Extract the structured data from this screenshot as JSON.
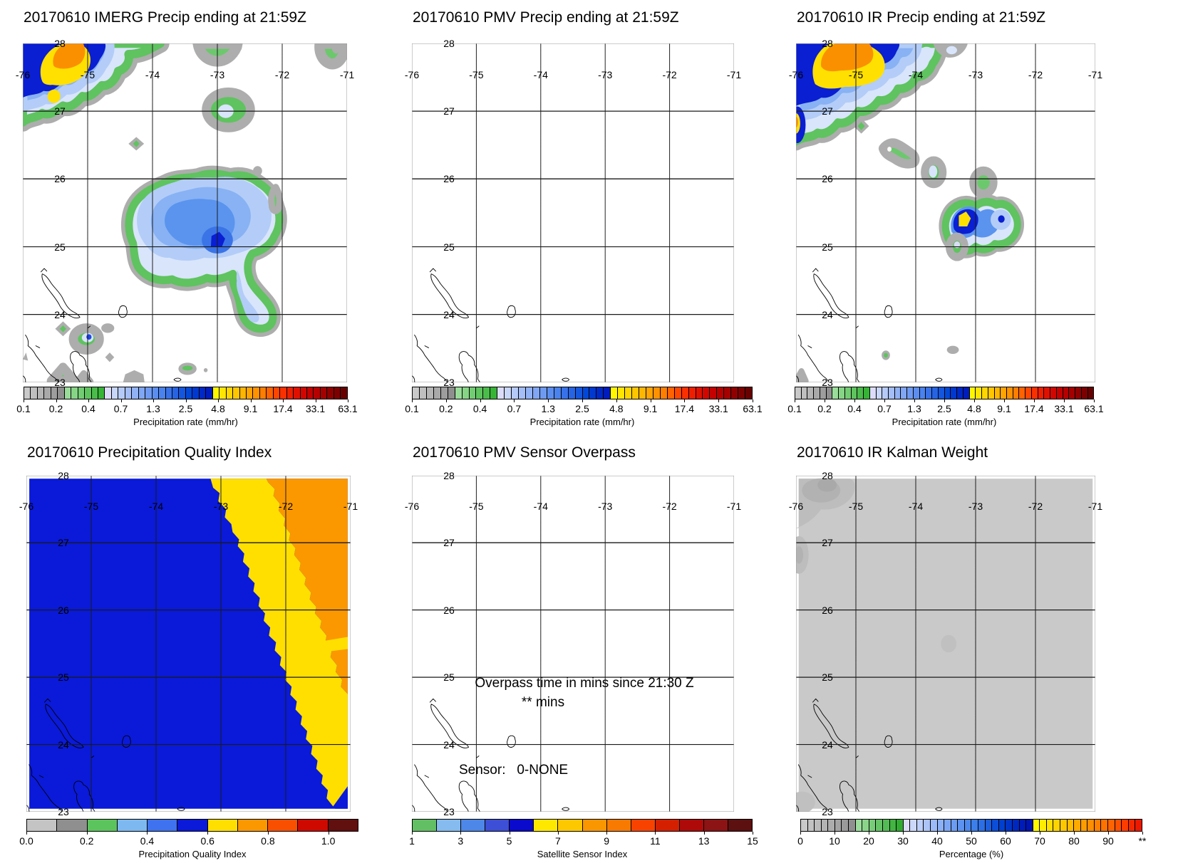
{
  "figure": {
    "background": "#ffffff"
  },
  "geo_labels": {
    "lon": [
      "-76",
      "-75",
      "-74",
      "-73",
      "-72",
      "-71"
    ],
    "lat": [
      "28",
      "27",
      "26",
      "25",
      "24",
      "23"
    ]
  },
  "panels": [
    {
      "id": "imerg-precip",
      "title": "20170610 IMERG Precip ending at 21:59Z",
      "colorbar": {
        "title": "Precipitation rate (mm/hr)",
        "colormap": "precip",
        "tick_labels": [
          "0.1",
          "0.2",
          "0.4",
          "0.7",
          "1.3",
          "2.5",
          "4.8",
          "9.1",
          "17.4",
          "33.1",
          "63.1"
        ]
      }
    },
    {
      "id": "pmv-precip",
      "title": "20170610 PMV Precip ending at 21:59Z",
      "colorbar": {
        "title": "Precipitation rate (mm/hr)",
        "colormap": "precip",
        "tick_labels": [
          "0.1",
          "0.2",
          "0.4",
          "0.7",
          "1.3",
          "2.5",
          "4.8",
          "9.1",
          "17.4",
          "33.1",
          "63.1"
        ]
      }
    },
    {
      "id": "ir-precip",
      "title": "20170610 IR Precip ending at 21:59Z",
      "colorbar": {
        "title": "Precipitation rate (mm/hr)",
        "colormap": "precip",
        "tick_labels": [
          "0.1",
          "0.2",
          "0.4",
          "0.7",
          "1.3",
          "2.5",
          "4.8",
          "9.1",
          "17.4",
          "33.1",
          "63.1"
        ]
      }
    },
    {
      "id": "precip-quality-index",
      "title": "20170610 Precipitation Quality Index",
      "colorbar": {
        "title": "Precipitation Quality Index",
        "colormap": "pqi",
        "tick_labels": [
          "0.0",
          "0.2",
          "0.4",
          "0.6",
          "0.8",
          "1.0"
        ]
      }
    },
    {
      "id": "pmv-sensor-overpass",
      "title": "20170610 PMV Sensor Overpass",
      "colorbar": {
        "title": "Satellite Sensor Index",
        "colormap": "sensor",
        "tick_labels": [
          "1",
          "3",
          "5",
          "7",
          "9",
          "11",
          "13",
          "15"
        ]
      },
      "overlay": {
        "line1": "Overpass time in mins since 21:30 Z",
        "line2": "** mins",
        "sensor_label": "Sensor:   0-NONE"
      }
    },
    {
      "id": "ir-kalman-weight",
      "title": "20170610 IR Kalman Weight",
      "colorbar": {
        "title": "Percentage (%)",
        "colormap": "percentage",
        "tick_labels": [
          "0",
          "10",
          "20",
          "30",
          "40",
          "50",
          "60",
          "70",
          "80",
          "90",
          "**"
        ]
      }
    }
  ],
  "palette": {
    "fringe": "#adadad",
    "ring": "#5fc35f",
    "greenFill": "#6cc86c",
    "pale": "#d9e5fb",
    "lblue": "#b3cdf8",
    "mblue": "#88b2f4",
    "blue": "#5a94ee",
    "dblue": "#3b74e6",
    "navy": "#0a1ed2",
    "dot": "#1e46e6",
    "yellow": "#ffe000",
    "orange": "#fa9000",
    "lavender": "#dcdcfa",
    "white": "#ffffff",
    "pqiBlue": "#0a1ad8",
    "pqiYellow": "#ffdf00",
    "pqiOrange": "#fb9800",
    "kGray": "#c9c9c9",
    "kGray2": "#bdbdbd",
    "kGray3": "#b2b2b2",
    "kGray4": "#a9a9a9",
    "kFaint": "#c0c0c0"
  },
  "colormaps": {
    "precip": [
      "#c9c9c9",
      "#bfbfbf",
      "#b5b5b5",
      "#a9a9a9",
      "#9d9d9d",
      "#8f8f8f",
      "#9adc9a",
      "#86d486",
      "#72cc72",
      "#5ec45e",
      "#4abc4a",
      "#36b436",
      "#dcdcfa",
      "#c8d6fa",
      "#b6caf8",
      "#a4bef8",
      "#92b2f6",
      "#80a6f4",
      "#6e9af2",
      "#5c8ef0",
      "#4a82ee",
      "#3872ea",
      "#2664e4",
      "#1456de",
      "#0248d8",
      "#0038d0",
      "#0028c6",
      "#001cbc",
      "#fff600",
      "#ffe600",
      "#ffd600",
      "#ffc600",
      "#ffb600",
      "#ffa400",
      "#ff9200",
      "#ff7e00",
      "#ff6200",
      "#ff4600",
      "#fa3000",
      "#ee1e00",
      "#e01000",
      "#d20600",
      "#c40000",
      "#b60000",
      "#a40000",
      "#900000",
      "#7c0000",
      "#680000"
    ],
    "pqi": [
      "#c4c4c4",
      "#8f8f8f",
      "#5cc45c",
      "#7db9f0",
      "#3f72ee",
      "#0a1ad8",
      "#ffdf00",
      "#fb9800",
      "#f85000",
      "#ce0a00",
      "#610f0f"
    ],
    "sensor": [
      "#63bf63",
      "#85bbee",
      "#4d87e8",
      "#3d4fd6",
      "#0a0acc",
      "#ffe800",
      "#fec800",
      "#fa9600",
      "#f87a00",
      "#f84300",
      "#d42000",
      "#ae0a0a",
      "#8c1414",
      "#5c1010"
    ],
    "percentage": [
      "#c9c9c9",
      "#c2c2c2",
      "#bbbbbb",
      "#b4b4b4",
      "#adadad",
      "#a4a4a4",
      "#9a9a9a",
      "#8f8f8f",
      "#9cdc9c",
      "#8ad48a",
      "#78cc78",
      "#66c466",
      "#54bc54",
      "#42b442",
      "#30ac30",
      "#dcdcfa",
      "#ccd8fa",
      "#bccef9",
      "#acc4f8",
      "#9cbaf7",
      "#8cb0f6",
      "#7ca6f4",
      "#6c9cf2",
      "#5c92f0",
      "#4c88ee",
      "#3c7eea",
      "#2c6ee4",
      "#1c5ede",
      "#0c4ed8",
      "#0040d0",
      "#0034c8",
      "#0028c0",
      "#001cb8",
      "#0014b0",
      "#fff800",
      "#ffec00",
      "#ffe000",
      "#ffd400",
      "#ffc800",
      "#ffbc00",
      "#ffaa00",
      "#ff9c00",
      "#ff8e00",
      "#ff8000",
      "#ff7200",
      "#ff6400",
      "#ff5000",
      "#fc3c00",
      "#f42800",
      "#ec1800"
    ]
  },
  "chart_data": [
    {
      "type": "heatmap",
      "title": "20170610 IMERG Precip ending at 21:59Z",
      "x_range": [
        -76,
        -71
      ],
      "y_range": [
        23,
        28
      ],
      "x_ticks": [
        -76,
        -75,
        -74,
        -73,
        -72,
        -71
      ],
      "y_ticks": [
        28,
        27,
        26,
        25,
        24,
        23
      ],
      "grid": "dotted",
      "colorbar": {
        "label": "Precipitation rate (mm/hr)",
        "scale": "log",
        "ticks": [
          0.1,
          0.2,
          0.4,
          0.7,
          1.3,
          2.5,
          4.8,
          9.1,
          17.4,
          33.1,
          63.1
        ]
      },
      "features": [
        {
          "name": "nw-storm-complex",
          "center_lon": -75.35,
          "center_lat": 27.6,
          "peak_mm_hr": 17.4,
          "note": "orange/yellow core, navy surround, green-gray fringe, touches N and W edges"
        },
        {
          "name": "secondary-yellow-cell",
          "center_lon": -75.5,
          "center_lat": 27.2,
          "peak_mm_hr": 4.8
        },
        {
          "name": "light-cell",
          "center_lon": -72.8,
          "center_lat": 27.0,
          "peak_mm_hr": 0.7
        },
        {
          "name": "central-rain-shield",
          "center_lon": -73.2,
          "center_lat": 25.3,
          "peak_mm_hr": 2.5,
          "note": "broad light-blue shield with small navy maximum near -73.0,25.0 and tail to -72.3,24.0"
        },
        {
          "name": "scattered-light-cells-south",
          "center_lon": -75.0,
          "center_lat": 23.6,
          "peak_mm_hr": 1.3
        }
      ]
    },
    {
      "type": "heatmap",
      "title": "20170610 PMV Precip ending at 21:59Z",
      "x_range": [
        -76,
        -71
      ],
      "y_range": [
        23,
        28
      ],
      "x_ticks": [
        -76,
        -75,
        -74,
        -73,
        -72,
        -71
      ],
      "y_ticks": [
        28,
        27,
        26,
        25,
        24,
        23
      ],
      "grid": "dotted",
      "colorbar": {
        "label": "Precipitation rate (mm/hr)",
        "scale": "log",
        "ticks": [
          0.1,
          0.2,
          0.4,
          0.7,
          1.3,
          2.5,
          4.8,
          9.1,
          17.4,
          33.1,
          63.1
        ]
      },
      "features": [],
      "note": "no PMV precipitation data in domain"
    },
    {
      "type": "heatmap",
      "title": "20170610 IR Precip ending at 21:59Z",
      "x_range": [
        -76,
        -71
      ],
      "y_range": [
        23,
        28
      ],
      "x_ticks": [
        -76,
        -75,
        -74,
        -73,
        -72,
        -71
      ],
      "y_ticks": [
        28,
        27,
        26,
        25,
        24,
        23
      ],
      "grid": "dotted",
      "colorbar": {
        "label": "Precipitation rate (mm/hr)",
        "scale": "log",
        "ticks": [
          0.1,
          0.2,
          0.4,
          0.7,
          1.3,
          2.5,
          4.8,
          9.1,
          17.4,
          33.1,
          63.1
        ]
      },
      "features": [
        {
          "name": "nw-storm-complex",
          "center_lon": -75.2,
          "center_lat": 27.7,
          "peak_mm_hr": 17.4,
          "note": "orange core with yellow ring and navy surround; secondary yellow-orange core on west edge near 27.2"
        },
        {
          "name": "green-cells-diagonal",
          "centers": [
            [
              -74.9,
              26.8
            ],
            [
              -74.3,
              26.35
            ],
            [
              -73.75,
              26.1
            ],
            [
              -72.85,
              25.95
            ]
          ],
          "peak_mm_hr": 0.4
        },
        {
          "name": "convective-cell",
          "center_lon": -73.2,
          "center_lat": 25.3,
          "peak_mm_hr": 4.8,
          "note": "yellow core in navy, eastern lobe with navy dot near -72.6,25.35"
        }
      ]
    },
    {
      "type": "heatmap",
      "title": "20170610 Precipitation Quality Index",
      "x_range": [
        -76,
        -71
      ],
      "y_range": [
        23,
        28
      ],
      "x_ticks": [
        -76,
        -75,
        -74,
        -73,
        -72,
        -71
      ],
      "y_ticks": [
        28,
        27,
        26,
        25,
        24,
        23
      ],
      "grid": "dotted",
      "colorbar": {
        "label": "Precipitation Quality Index",
        "ticks": [
          0.0,
          0.2,
          0.4,
          0.6,
          0.8,
          1.0
        ]
      },
      "regions": [
        {
          "value_range": [
            0.5,
            0.6
          ],
          "color_hex": "#0a1ad8",
          "coverage": "most of domain (west of jagged diagonal from -73.2,28 to -71.3,23)"
        },
        {
          "value_range": [
            0.6,
            0.7
          ],
          "color_hex": "#ffdf00",
          "coverage": "diagonal band sloping SE from top-center to lower-right edge"
        },
        {
          "value_range": [
            0.7,
            0.8
          ],
          "color_hex": "#fb9800",
          "coverage": "northeast corner wedge down to about 24.7 on the east edge"
        }
      ]
    },
    {
      "type": "map",
      "title": "20170610 PMV Sensor Overpass",
      "x_range": [
        -76,
        -71
      ],
      "y_range": [
        23,
        28
      ],
      "x_ticks": [
        -76,
        -75,
        -74,
        -73,
        -72,
        -71
      ],
      "y_ticks": [
        28,
        27,
        26,
        25,
        24,
        23
      ],
      "grid": "dotted",
      "annotations": [
        "Overpass time in mins since 21:30 Z",
        "** mins",
        "Sensor:   0-NONE"
      ],
      "colorbar": {
        "label": "Satellite Sensor Index",
        "ticks": [
          1,
          3,
          5,
          7,
          9,
          11,
          13,
          15
        ]
      }
    },
    {
      "type": "heatmap",
      "title": "20170610 IR Kalman Weight",
      "x_range": [
        -76,
        -71
      ],
      "y_range": [
        23,
        28
      ],
      "x_ticks": [
        -76,
        -75,
        -74,
        -73,
        -72,
        -71
      ],
      "y_ticks": [
        28,
        27,
        26,
        25,
        24,
        23
      ],
      "grid": "dotted",
      "colorbar": {
        "label": "Percentage (%)",
        "ticks": [
          "0",
          "10",
          "20",
          "30",
          "40",
          "50",
          "60",
          "70",
          "80",
          "90",
          "**"
        ]
      },
      "regions": [
        {
          "value_pct": [
            0,
            10
          ],
          "color_hex": "#c9c9c9",
          "coverage": "entire domain"
        },
        {
          "value_pct": [
            10,
            16
          ],
          "color_hex": "#b2b2b2",
          "coverage": "patches near -75.5,27.8 and on west edge near 27.2"
        },
        {
          "value_pct": [
            8,
            12
          ],
          "color_hex": "#c0c0c0",
          "coverage": "faint spot near -73.4,25.5 and SW corner"
        }
      ]
    }
  ]
}
